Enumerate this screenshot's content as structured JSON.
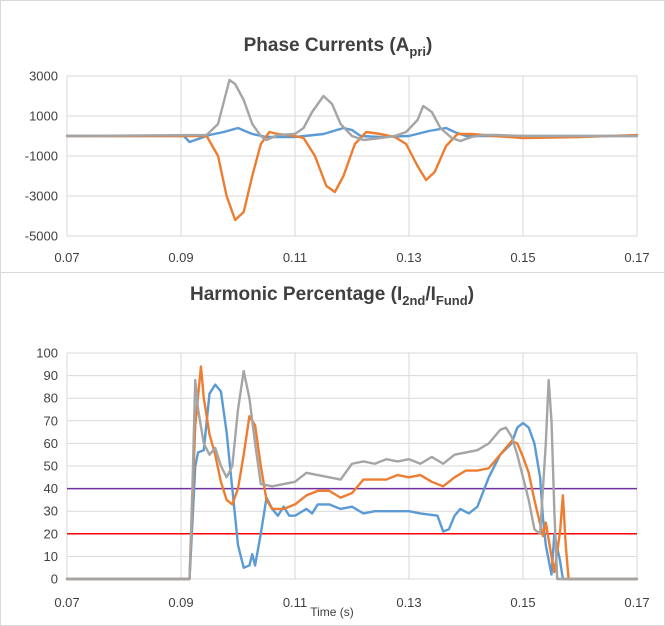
{
  "chart_data": [
    {
      "type": "line",
      "title": "Phase Currents (A",
      "title_sub": "pri",
      "title_end": ")",
      "xlabel": "",
      "ylabel": "",
      "xlim": [
        0.07,
        0.17
      ],
      "ylim": [
        -5000,
        3000
      ],
      "x_ticks": [
        "0.07",
        "0.09",
        "0.11",
        "0.13",
        "0.15",
        "0.17"
      ],
      "y_ticks": [
        "-5000",
        "-3000",
        "-1000",
        "1000",
        "3000"
      ],
      "grid": "horizontal",
      "series": [
        {
          "color": "#5b9bd5",
          "points": [
            [
              0.07,
              0
            ],
            [
              0.0905,
              0
            ],
            [
              0.0915,
              -300
            ],
            [
              0.093,
              -150
            ],
            [
              0.095,
              50
            ],
            [
              0.0975,
              200
            ],
            [
              0.1,
              400
            ],
            [
              0.1025,
              100
            ],
            [
              0.105,
              -50
            ],
            [
              0.11,
              -50
            ],
            [
              0.115,
              100
            ],
            [
              0.1185,
              400
            ],
            [
              0.12,
              300
            ],
            [
              0.1215,
              0
            ],
            [
              0.125,
              -50
            ],
            [
              0.13,
              0
            ],
            [
              0.1335,
              250
            ],
            [
              0.1365,
              400
            ],
            [
              0.138,
              200
            ],
            [
              0.14,
              0
            ],
            [
              0.145,
              0
            ],
            [
              0.17,
              0
            ]
          ]
        },
        {
          "color": "#ed7d31",
          "points": [
            [
              0.07,
              0
            ],
            [
              0.0945,
              0
            ],
            [
              0.0965,
              -1000
            ],
            [
              0.098,
              -3000
            ],
            [
              0.0995,
              -4200
            ],
            [
              0.101,
              -3800
            ],
            [
              0.1025,
              -2000
            ],
            [
              0.104,
              -400
            ],
            [
              0.1055,
              200
            ],
            [
              0.107,
              100
            ],
            [
              0.11,
              0
            ],
            [
              0.1115,
              -100
            ],
            [
              0.1135,
              -1000
            ],
            [
              0.1155,
              -2500
            ],
            [
              0.117,
              -2800
            ],
            [
              0.1185,
              -2000
            ],
            [
              0.1205,
              -400
            ],
            [
              0.1225,
              200
            ],
            [
              0.125,
              100
            ],
            [
              0.1275,
              -50
            ],
            [
              0.1295,
              -400
            ],
            [
              0.1315,
              -1500
            ],
            [
              0.133,
              -2200
            ],
            [
              0.1345,
              -1800
            ],
            [
              0.1365,
              -500
            ],
            [
              0.1385,
              100
            ],
            [
              0.141,
              100
            ],
            [
              0.145,
              0
            ],
            [
              0.15,
              -100
            ],
            [
              0.16,
              -50
            ],
            [
              0.17,
              50
            ]
          ]
        },
        {
          "color": "#a5a5a5",
          "points": [
            [
              0.07,
              0
            ],
            [
              0.0945,
              50
            ],
            [
              0.0965,
              600
            ],
            [
              0.0985,
              2800
            ],
            [
              0.0995,
              2600
            ],
            [
              0.101,
              1800
            ],
            [
              0.1025,
              600
            ],
            [
              0.104,
              0
            ],
            [
              0.105,
              -200
            ],
            [
              0.107,
              50
            ],
            [
              0.11,
              100
            ],
            [
              0.1115,
              400
            ],
            [
              0.113,
              1200
            ],
            [
              0.115,
              2000
            ],
            [
              0.1165,
              1600
            ],
            [
              0.118,
              600
            ],
            [
              0.12,
              0
            ],
            [
              0.122,
              -200
            ],
            [
              0.125,
              -100
            ],
            [
              0.1275,
              0
            ],
            [
              0.1295,
              200
            ],
            [
              0.1315,
              800
            ],
            [
              0.1325,
              1500
            ],
            [
              0.134,
              1200
            ],
            [
              0.1355,
              400
            ],
            [
              0.1375,
              -100
            ],
            [
              0.139,
              -250
            ],
            [
              0.141,
              -50
            ],
            [
              0.143,
              50
            ],
            [
              0.145,
              50
            ],
            [
              0.15,
              0
            ],
            [
              0.17,
              0
            ]
          ]
        }
      ]
    },
    {
      "type": "line",
      "title": "Harmonic Percentage (I",
      "title_sub1": "2nd",
      "title_mid": "/I",
      "title_sub2": "Fund",
      "title_end": ")",
      "xlabel": "Time (s)",
      "ylabel": "",
      "xlim": [
        0.07,
        0.17
      ],
      "ylim": [
        0,
        100
      ],
      "x_ticks": [
        "0.07",
        "0.09",
        "0.11",
        "0.13",
        "0.15",
        "0.17"
      ],
      "y_ticks": [
        "0",
        "10",
        "20",
        "30",
        "40",
        "50",
        "60",
        "70",
        "80",
        "90",
        "100"
      ],
      "grid": "horizontal",
      "reference_lines": [
        {
          "y": 40,
          "color": "#7030a0"
        },
        {
          "y": 20,
          "color": "#ff0000"
        }
      ],
      "series": [
        {
          "color": "#5b9bd5",
          "points": [
            [
              0.07,
              0
            ],
            [
              0.0915,
              0
            ],
            [
              0.0925,
              50
            ],
            [
              0.093,
              56
            ],
            [
              0.094,
              57
            ],
            [
              0.095,
              82
            ],
            [
              0.096,
              86
            ],
            [
              0.097,
              83
            ],
            [
              0.098,
              65
            ],
            [
              0.099,
              40
            ],
            [
              0.1,
              15
            ],
            [
              0.101,
              5
            ],
            [
              0.102,
              6
            ],
            [
              0.1025,
              11
            ],
            [
              0.103,
              6
            ],
            [
              0.104,
              20
            ],
            [
              0.105,
              36
            ],
            [
              0.106,
              31
            ],
            [
              0.107,
              28
            ],
            [
              0.108,
              32
            ],
            [
              0.109,
              28
            ],
            [
              0.11,
              28
            ],
            [
              0.112,
              31
            ],
            [
              0.113,
              29
            ],
            [
              0.114,
              33
            ],
            [
              0.116,
              33
            ],
            [
              0.118,
              31
            ],
            [
              0.12,
              32
            ],
            [
              0.122,
              29
            ],
            [
              0.124,
              30
            ],
            [
              0.128,
              30
            ],
            [
              0.13,
              30
            ],
            [
              0.132,
              29
            ],
            [
              0.135,
              28
            ],
            [
              0.136,
              21
            ],
            [
              0.137,
              22
            ],
            [
              0.138,
              28
            ],
            [
              0.139,
              31
            ],
            [
              0.1405,
              29
            ],
            [
              0.142,
              32
            ],
            [
              0.144,
              45
            ],
            [
              0.146,
              55
            ],
            [
              0.148,
              60
            ],
            [
              0.149,
              67
            ],
            [
              0.15,
              69
            ],
            [
              0.151,
              67
            ],
            [
              0.152,
              60
            ],
            [
              0.153,
              45
            ],
            [
              0.1535,
              27
            ],
            [
              0.154,
              15
            ],
            [
              0.155,
              2
            ],
            [
              0.1555,
              20
            ],
            [
              0.1565,
              8
            ],
            [
              0.157,
              0
            ],
            [
              0.17,
              0
            ]
          ]
        },
        {
          "color": "#ed7d31",
          "points": [
            [
              0.07,
              0
            ],
            [
              0.0915,
              0
            ],
            [
              0.0925,
              68
            ],
            [
              0.0935,
              94
            ],
            [
              0.094,
              80
            ],
            [
              0.095,
              64
            ],
            [
              0.096,
              55
            ],
            [
              0.097,
              43
            ],
            [
              0.098,
              35
            ],
            [
              0.099,
              33
            ],
            [
              0.1,
              40
            ],
            [
              0.101,
              55
            ],
            [
              0.102,
              72
            ],
            [
              0.103,
              68
            ],
            [
              0.104,
              50
            ],
            [
              0.105,
              35
            ],
            [
              0.106,
              31
            ],
            [
              0.108,
              31
            ],
            [
              0.11,
              33
            ],
            [
              0.112,
              37
            ],
            [
              0.114,
              39
            ],
            [
              0.116,
              39
            ],
            [
              0.118,
              36
            ],
            [
              0.12,
              38
            ],
            [
              0.122,
              44
            ],
            [
              0.124,
              44
            ],
            [
              0.126,
              44
            ],
            [
              0.128,
              46
            ],
            [
              0.13,
              45
            ],
            [
              0.132,
              46
            ],
            [
              0.134,
              43
            ],
            [
              0.136,
              41
            ],
            [
              0.138,
              45
            ],
            [
              0.14,
              48
            ],
            [
              0.142,
              48
            ],
            [
              0.144,
              49
            ],
            [
              0.146,
              55
            ],
            [
              0.148,
              61
            ],
            [
              0.149,
              60
            ],
            [
              0.15,
              54
            ],
            [
              0.151,
              47
            ],
            [
              0.152,
              35
            ],
            [
              0.1535,
              19
            ],
            [
              0.154,
              25
            ],
            [
              0.155,
              10
            ],
            [
              0.1555,
              3
            ],
            [
              0.1565,
              21
            ],
            [
              0.157,
              37
            ],
            [
              0.1575,
              15
            ],
            [
              0.158,
              0
            ],
            [
              0.17,
              0
            ]
          ]
        },
        {
          "color": "#a5a5a5",
          "points": [
            [
              0.07,
              0
            ],
            [
              0.0915,
              0
            ],
            [
              0.092,
              40
            ],
            [
              0.0925,
              88
            ],
            [
              0.093,
              75
            ],
            [
              0.094,
              60
            ],
            [
              0.095,
              55
            ],
            [
              0.096,
              58
            ],
            [
              0.097,
              50
            ],
            [
              0.098,
              45
            ],
            [
              0.099,
              50
            ],
            [
              0.1,
              75
            ],
            [
              0.101,
              92
            ],
            [
              0.102,
              80
            ],
            [
              0.103,
              60
            ],
            [
              0.104,
              42
            ],
            [
              0.106,
              41
            ],
            [
              0.108,
              42
            ],
            [
              0.11,
              43
            ],
            [
              0.112,
              47
            ],
            [
              0.114,
              46
            ],
            [
              0.116,
              45
            ],
            [
              0.118,
              44
            ],
            [
              0.12,
              51
            ],
            [
              0.122,
              52
            ],
            [
              0.124,
              51
            ],
            [
              0.126,
              53
            ],
            [
              0.128,
              52
            ],
            [
              0.13,
              53
            ],
            [
              0.132,
              51
            ],
            [
              0.134,
              54
            ],
            [
              0.136,
              51
            ],
            [
              0.138,
              55
            ],
            [
              0.14,
              56
            ],
            [
              0.142,
              57
            ],
            [
              0.144,
              60
            ],
            [
              0.146,
              66
            ],
            [
              0.147,
              67
            ],
            [
              0.148,
              63
            ],
            [
              0.149,
              55
            ],
            [
              0.15,
              45
            ],
            [
              0.151,
              35
            ],
            [
              0.152,
              22
            ],
            [
              0.153,
              20
            ],
            [
              0.154,
              60
            ],
            [
              0.1545,
              88
            ],
            [
              0.155,
              70
            ],
            [
              0.1555,
              30
            ],
            [
              0.156,
              0
            ],
            [
              0.17,
              0
            ]
          ]
        }
      ]
    }
  ]
}
